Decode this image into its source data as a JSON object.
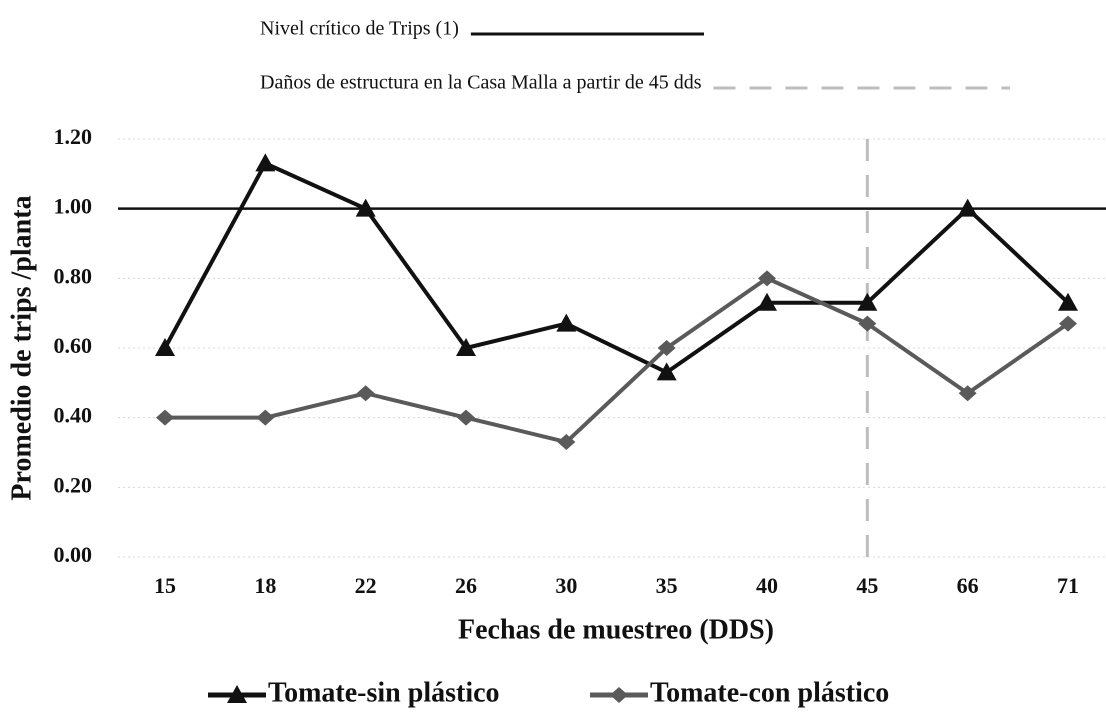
{
  "chart_data": {
    "type": "line",
    "xlabel": "Fechas de muestreo (DDS)",
    "ylabel": "Promedio de trips /planta",
    "categories": [
      "15",
      "18",
      "22",
      "26",
      "30",
      "35",
      "40",
      "45",
      "66",
      "71"
    ],
    "series": [
      {
        "name": "Tomate-sin plástico",
        "color": "#111111",
        "marker": "triangle",
        "values": [
          0.6,
          1.13,
          1.0,
          0.6,
          0.67,
          0.53,
          0.73,
          0.73,
          1.0,
          0.73
        ]
      },
      {
        "name": "Tomate-con plástico",
        "color": "#5a5a5a",
        "marker": "diamond",
        "values": [
          0.4,
          0.4,
          0.47,
          0.4,
          0.33,
          0.6,
          0.8,
          0.67,
          0.47,
          0.67
        ]
      }
    ],
    "ylim": [
      0,
      1.2
    ],
    "yticks": [
      {
        "value": 0,
        "label": "0.00"
      },
      {
        "value": 0.2,
        "label": "0.20"
      },
      {
        "value": 0.4,
        "label": "0.40"
      },
      {
        "value": 0.6,
        "label": "0.60"
      },
      {
        "value": 0.8,
        "label": "0.80"
      },
      {
        "value": 1,
        "label": "1.00"
      },
      {
        "value": 1.2,
        "label": "1.20"
      }
    ],
    "grid": true,
    "reference_lines": [
      {
        "label": "Nivel crítico de Trips (1)",
        "axis": "y",
        "value": 1,
        "color": "#111111",
        "style": "solid"
      },
      {
        "label": "Daños de estructura en la Casa Malla a partir de 45 dds",
        "axis": "x",
        "category": "45",
        "color": "#bdbdbd",
        "style": "dashed"
      }
    ],
    "legend": "bottom"
  }
}
